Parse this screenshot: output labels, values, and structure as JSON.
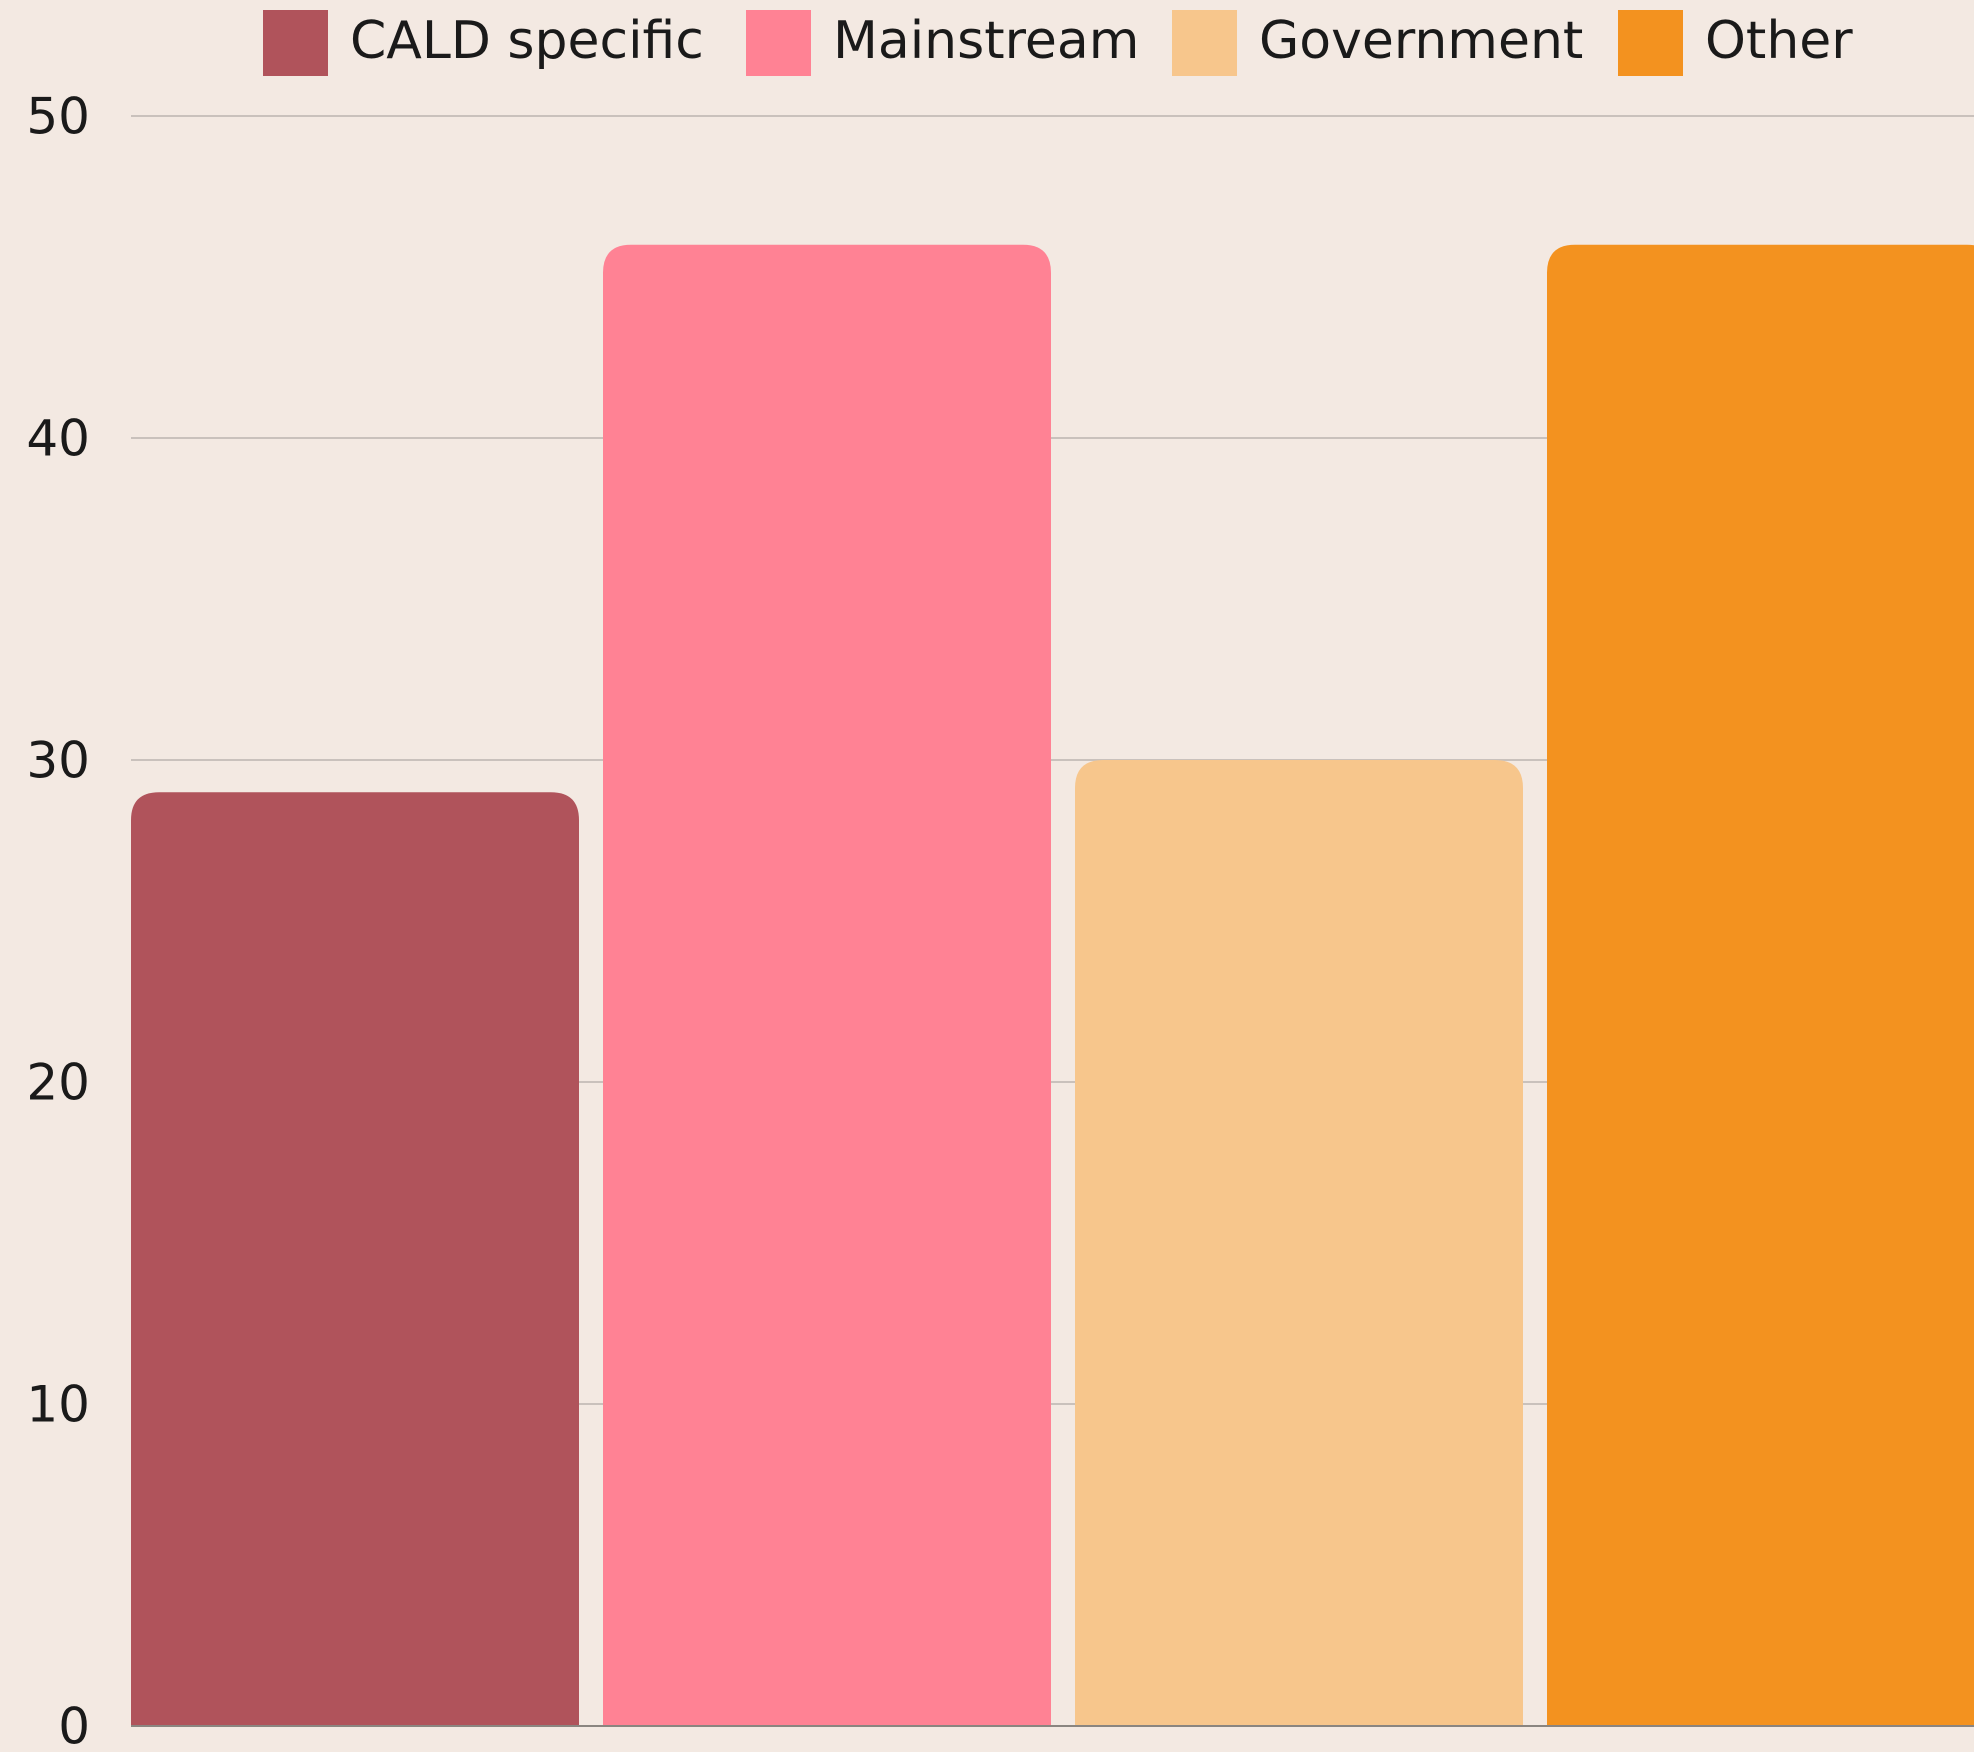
{
  "chart_data": {
    "type": "bar",
    "categories": [
      null
    ],
    "series": [
      {
        "name": "CALD specific",
        "color": "#b0535b",
        "values": [
          29
        ]
      },
      {
        "name": "Mainstream",
        "color": "#ff8294",
        "values": [
          46
        ]
      },
      {
        "name": "Government",
        "color": "#f7c68c",
        "values": [
          30
        ]
      },
      {
        "name": "Other",
        "color": "#f3921f",
        "values": [
          46
        ]
      }
    ],
    "ylim": [
      0,
      50
    ],
    "yticks": [
      0,
      10,
      20,
      30,
      40,
      50
    ],
    "grid": true,
    "legend": "top"
  }
}
